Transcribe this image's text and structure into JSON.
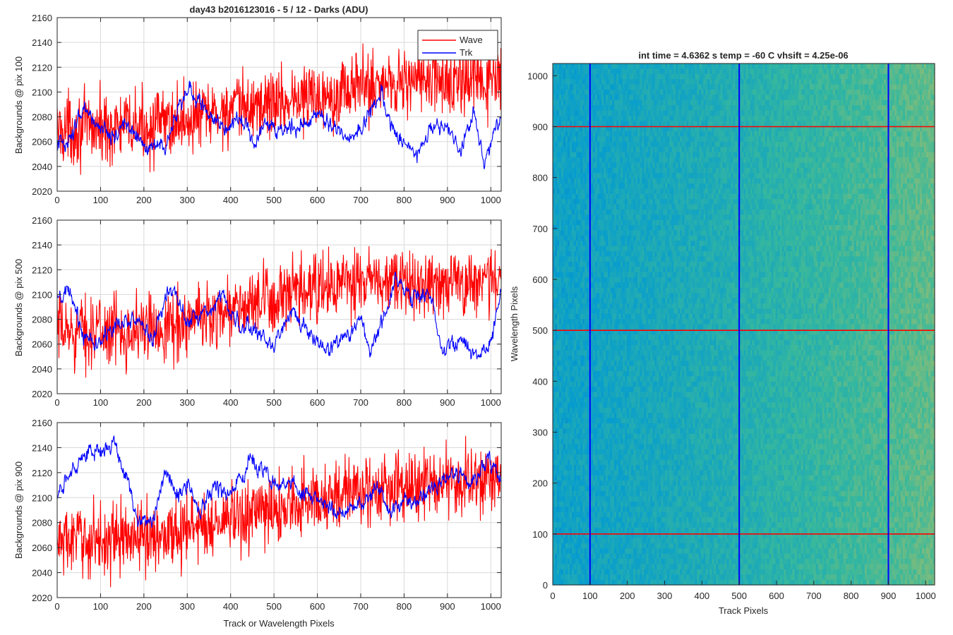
{
  "figure_title": "day43 b2016123016 - 5 / 12 - Darks (ADU)",
  "colors": {
    "wave": "#ff0000",
    "trk": "#0000ff",
    "grid": "#d9d9d9",
    "axes": "#262626"
  },
  "chart_data": [
    {
      "type": "line",
      "title": "day43 b2016123016 - 5 / 12 - Darks (ADU)",
      "xlabel": "",
      "ylabel": "Backgrounds @ pix 100",
      "xlim": [
        0,
        1024
      ],
      "ylim": [
        2020,
        2160
      ],
      "x_ticks": [
        0,
        100,
        200,
        300,
        400,
        500,
        600,
        700,
        800,
        900,
        1000
      ],
      "y_ticks": [
        2020,
        2040,
        2060,
        2080,
        2100,
        2120,
        2140,
        2160
      ],
      "grid": true,
      "legend": {
        "position": "top-right",
        "entries": [
          "Wave",
          "Trk"
        ]
      },
      "series": [
        {
          "name": "Wave",
          "color": "#ff0000",
          "noise": 14,
          "anchors": [
            [
              0,
              2070
            ],
            [
              200,
              2072
            ],
            [
              300,
              2078
            ],
            [
              400,
              2085
            ],
            [
              500,
              2092
            ],
            [
              600,
              2097
            ],
            [
              700,
              2105
            ],
            [
              800,
              2110
            ],
            [
              900,
              2108
            ],
            [
              1024,
              2108
            ]
          ]
        },
        {
          "name": "Trk",
          "color": "#0000ff",
          "noise": 4,
          "anchors": [
            [
              0,
              2058
            ],
            [
              30,
              2062
            ],
            [
              60,
              2085
            ],
            [
              90,
              2075
            ],
            [
              130,
              2065
            ],
            [
              160,
              2075
            ],
            [
              200,
              2055
            ],
            [
              250,
              2055
            ],
            [
              290,
              2095
            ],
            [
              310,
              2103
            ],
            [
              340,
              2085
            ],
            [
              380,
              2072
            ],
            [
              420,
              2080
            ],
            [
              450,
              2060
            ],
            [
              480,
              2075
            ],
            [
              520,
              2070
            ],
            [
              560,
              2072
            ],
            [
              600,
              2082
            ],
            [
              640,
              2072
            ],
            [
              680,
              2062
            ],
            [
              720,
              2082
            ],
            [
              750,
              2100
            ],
            [
              770,
              2070
            ],
            [
              800,
              2060
            ],
            [
              830,
              2048
            ],
            [
              860,
              2070
            ],
            [
              900,
              2070
            ],
            [
              930,
              2050
            ],
            [
              960,
              2085
            ],
            [
              985,
              2045
            ],
            [
              1024,
              2080
            ]
          ]
        }
      ]
    },
    {
      "type": "line",
      "xlabel": "",
      "ylabel": "Backgrounds @ pix 500",
      "xlim": [
        0,
        1024
      ],
      "ylim": [
        2020,
        2160
      ],
      "x_ticks": [
        0,
        100,
        200,
        300,
        400,
        500,
        600,
        700,
        800,
        900,
        1000
      ],
      "y_ticks": [
        2020,
        2040,
        2060,
        2080,
        2100,
        2120,
        2140,
        2160
      ],
      "grid": true,
      "series": [
        {
          "name": "Wave",
          "color": "#ff0000",
          "noise": 14,
          "anchors": [
            [
              0,
              2070
            ],
            [
              200,
              2072
            ],
            [
              300,
              2078
            ],
            [
              400,
              2088
            ],
            [
              500,
              2095
            ],
            [
              600,
              2104
            ],
            [
              700,
              2110
            ],
            [
              800,
              2108
            ],
            [
              900,
              2110
            ],
            [
              1024,
              2112
            ]
          ]
        },
        {
          "name": "Trk",
          "color": "#0000ff",
          "noise": 4,
          "anchors": [
            [
              0,
              2095
            ],
            [
              30,
              2100
            ],
            [
              60,
              2068
            ],
            [
              100,
              2062
            ],
            [
              140,
              2075
            ],
            [
              180,
              2082
            ],
            [
              220,
              2065
            ],
            [
              260,
              2105
            ],
            [
              300,
              2080
            ],
            [
              340,
              2085
            ],
            [
              380,
              2100
            ],
            [
              420,
              2075
            ],
            [
              460,
              2070
            ],
            [
              500,
              2060
            ],
            [
              540,
              2085
            ],
            [
              580,
              2068
            ],
            [
              620,
              2052
            ],
            [
              660,
              2065
            ],
            [
              700,
              2080
            ],
            [
              720,
              2055
            ],
            [
              760,
              2088
            ],
            [
              780,
              2112
            ],
            [
              820,
              2098
            ],
            [
              860,
              2100
            ],
            [
              890,
              2055
            ],
            [
              930,
              2062
            ],
            [
              970,
              2050
            ],
            [
              1000,
              2062
            ],
            [
              1024,
              2100
            ]
          ]
        }
      ]
    },
    {
      "type": "line",
      "xlabel": "Track or Wavelength Pixels",
      "ylabel": "Backgrounds @ pix 900",
      "xlim": [
        0,
        1024
      ],
      "ylim": [
        2020,
        2160
      ],
      "x_ticks": [
        0,
        100,
        200,
        300,
        400,
        500,
        600,
        700,
        800,
        900,
        1000
      ],
      "y_ticks": [
        2020,
        2040,
        2060,
        2080,
        2100,
        2120,
        2140,
        2160
      ],
      "grid": true,
      "series": [
        {
          "name": "Wave",
          "color": "#ff0000",
          "noise": 14,
          "anchors": [
            [
              0,
              2065
            ],
            [
              200,
              2068
            ],
            [
              300,
              2075
            ],
            [
              400,
              2082
            ],
            [
              500,
              2090
            ],
            [
              600,
              2100
            ],
            [
              700,
              2105
            ],
            [
              800,
              2108
            ],
            [
              900,
              2112
            ],
            [
              1024,
              2115
            ]
          ]
        },
        {
          "name": "Trk",
          "color": "#0000ff",
          "noise": 4,
          "anchors": [
            [
              0,
              2100
            ],
            [
              20,
              2112
            ],
            [
              50,
              2132
            ],
            [
              100,
              2138
            ],
            [
              130,
              2145
            ],
            [
              160,
              2118
            ],
            [
              180,
              2085
            ],
            [
              220,
              2080
            ],
            [
              250,
              2120
            ],
            [
              280,
              2100
            ],
            [
              300,
              2110
            ],
            [
              330,
              2090
            ],
            [
              360,
              2110
            ],
            [
              400,
              2100
            ],
            [
              440,
              2128
            ],
            [
              470,
              2125
            ],
            [
              500,
              2110
            ],
            [
              540,
              2112
            ],
            [
              580,
              2100
            ],
            [
              620,
              2095
            ],
            [
              660,
              2085
            ],
            [
              700,
              2095
            ],
            [
              740,
              2110
            ],
            [
              770,
              2088
            ],
            [
              800,
              2098
            ],
            [
              840,
              2100
            ],
            [
              880,
              2110
            ],
            [
              920,
              2120
            ],
            [
              960,
              2112
            ],
            [
              990,
              2130
            ],
            [
              1024,
              2115
            ]
          ]
        }
      ]
    },
    {
      "type": "heatmap",
      "title": "int time = 4.6362 s    temp = -60 C    vhsift = 4.25e-06",
      "xlabel": "Track Pixels",
      "ylabel": "Wavelength Pixels",
      "xlim": [
        0,
        1024
      ],
      "ylim": [
        0,
        1024
      ],
      "x_ticks": [
        0,
        100,
        200,
        300,
        400,
        500,
        600,
        700,
        800,
        900,
        1000
      ],
      "y_ticks": [
        0,
        100,
        200,
        300,
        400,
        500,
        600,
        700,
        800,
        900,
        1000
      ],
      "colormap": "parula",
      "vertical_markers": {
        "values": [
          100,
          500,
          900
        ],
        "color": "#0000ff"
      },
      "horizontal_markers": {
        "values": [
          100,
          500,
          900
        ],
        "color": "#ff0000"
      }
    }
  ]
}
